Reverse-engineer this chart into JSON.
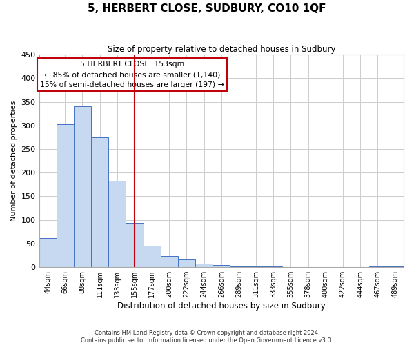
{
  "title": "5, HERBERT CLOSE, SUDBURY, CO10 1QF",
  "subtitle": "Size of property relative to detached houses in Sudbury",
  "xlabel": "Distribution of detached houses by size in Sudbury",
  "ylabel": "Number of detached properties",
  "bar_labels": [
    "44sqm",
    "66sqm",
    "88sqm",
    "111sqm",
    "133sqm",
    "155sqm",
    "177sqm",
    "200sqm",
    "222sqm",
    "244sqm",
    "266sqm",
    "289sqm",
    "311sqm",
    "333sqm",
    "355sqm",
    "378sqm",
    "400sqm",
    "422sqm",
    "444sqm",
    "467sqm",
    "489sqm"
  ],
  "bar_values": [
    62,
    303,
    340,
    275,
    183,
    93,
    46,
    24,
    16,
    8,
    5,
    2,
    1,
    1,
    0,
    0,
    0,
    0,
    0,
    2,
    1
  ],
  "bar_color": "#c6d9f0",
  "bar_edge_color": "#4472c4",
  "vline_x": 5,
  "vline_color": "#c0000b",
  "annotation_title": "5 HERBERT CLOSE: 153sqm",
  "annotation_line1": "← 85% of detached houses are smaller (1,140)",
  "annotation_line2": "15% of semi-detached houses are larger (197) →",
  "annotation_box_color": "#ffffff",
  "annotation_box_edge": "#c0000b",
  "ylim": [
    0,
    450
  ],
  "footer1": "Contains HM Land Registry data © Crown copyright and database right 2024.",
  "footer2": "Contains public sector information licensed under the Open Government Licence v3.0.",
  "background_color": "#ffffff",
  "grid_color": "#cccccc"
}
